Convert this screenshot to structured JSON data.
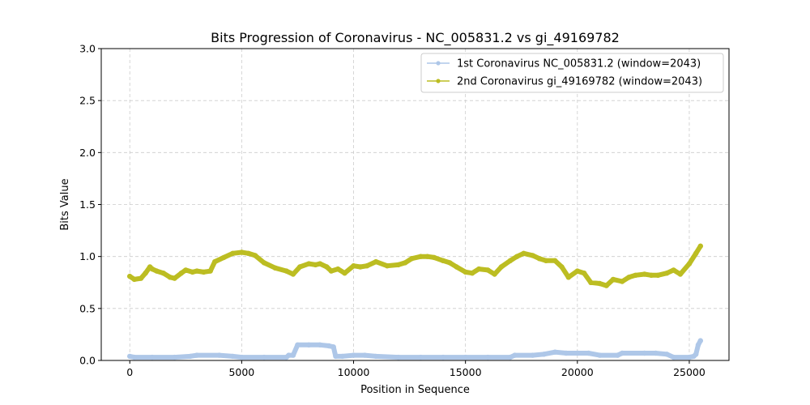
{
  "chart_data": {
    "type": "line",
    "title": "Bits Progression of Coronavirus - NC_005831.2 vs gi_49169782",
    "xlabel": "Position in Sequence",
    "ylabel": "Bits Value",
    "xlim": [
      -1275,
      26775
    ],
    "ylim": [
      0,
      3.0
    ],
    "xticks": [
      0,
      5000,
      10000,
      15000,
      20000,
      25000
    ],
    "yticks": [
      0.0,
      0.5,
      1.0,
      1.5,
      2.0,
      2.5,
      3.0
    ],
    "xtick_labels": [
      "0",
      "5000",
      "10000",
      "15000",
      "20000",
      "25000"
    ],
    "ytick_labels": [
      "0.0",
      "0.5",
      "1.0",
      "1.5",
      "2.0",
      "2.5",
      "3.0"
    ],
    "grid": true,
    "legend_position": "top-right",
    "series": [
      {
        "name": "1st Coronavirus NC_005831.2 (window=2043)",
        "color": "#aec7e8",
        "x": [
          0,
          200,
          1000,
          2000,
          2700,
          3000,
          4000,
          4600,
          5000,
          6000,
          7000,
          7100,
          7300,
          7500,
          8000,
          8500,
          8900,
          9100,
          9200,
          9500,
          10000,
          10500,
          11000,
          12000,
          13000,
          14000,
          15000,
          16000,
          17000,
          17200,
          18000,
          18500,
          19000,
          19500,
          20000,
          20500,
          21000,
          21800,
          22000,
          23000,
          23500,
          24000,
          24300,
          25000,
          25200,
          25300,
          25400,
          25500
        ],
        "values": [
          0.04,
          0.03,
          0.03,
          0.03,
          0.04,
          0.05,
          0.05,
          0.04,
          0.03,
          0.03,
          0.03,
          0.05,
          0.05,
          0.15,
          0.15,
          0.15,
          0.14,
          0.13,
          0.04,
          0.04,
          0.05,
          0.05,
          0.04,
          0.03,
          0.03,
          0.03,
          0.03,
          0.03,
          0.03,
          0.05,
          0.05,
          0.06,
          0.08,
          0.07,
          0.07,
          0.07,
          0.05,
          0.05,
          0.07,
          0.07,
          0.07,
          0.06,
          0.03,
          0.03,
          0.04,
          0.06,
          0.15,
          0.19
        ]
      },
      {
        "name": "2nd Coronavirus gi_49169782 (window=2043)",
        "color": "#bcbd22",
        "x": [
          0,
          200,
          500,
          700,
          900,
          1000,
          1200,
          1500,
          1800,
          2000,
          2300,
          2500,
          2800,
          3000,
          3300,
          3600,
          3800,
          4200,
          4600,
          5000,
          5300,
          5600,
          6000,
          6500,
          7000,
          7300,
          7600,
          8000,
          8300,
          8500,
          8800,
          9000,
          9300,
          9600,
          10000,
          10300,
          10600,
          11000,
          11500,
          12000,
          12300,
          12600,
          13000,
          13300,
          13600,
          14000,
          14300,
          14600,
          15000,
          15300,
          15600,
          16000,
          16300,
          16600,
          17000,
          17300,
          17600,
          18000,
          18300,
          18600,
          19000,
          19300,
          19600,
          20000,
          20300,
          20600,
          21000,
          21300,
          21600,
          22000,
          22300,
          22600,
          23000,
          23300,
          23600,
          24000,
          24300,
          24600,
          25000,
          25300,
          25500
        ],
        "values": [
          0.81,
          0.78,
          0.79,
          0.84,
          0.9,
          0.88,
          0.86,
          0.84,
          0.8,
          0.79,
          0.84,
          0.87,
          0.85,
          0.86,
          0.85,
          0.86,
          0.95,
          0.99,
          1.03,
          1.04,
          1.03,
          1.01,
          0.94,
          0.89,
          0.86,
          0.83,
          0.9,
          0.93,
          0.92,
          0.93,
          0.9,
          0.86,
          0.88,
          0.84,
          0.91,
          0.9,
          0.91,
          0.95,
          0.91,
          0.92,
          0.94,
          0.98,
          1.0,
          1.0,
          0.99,
          0.96,
          0.94,
          0.9,
          0.85,
          0.84,
          0.88,
          0.87,
          0.83,
          0.9,
          0.96,
          1.0,
          1.03,
          1.01,
          0.98,
          0.96,
          0.96,
          0.9,
          0.8,
          0.86,
          0.84,
          0.75,
          0.74,
          0.72,
          0.78,
          0.76,
          0.8,
          0.82,
          0.83,
          0.82,
          0.82,
          0.84,
          0.87,
          0.83,
          0.93,
          1.03,
          1.1
        ]
      }
    ]
  }
}
